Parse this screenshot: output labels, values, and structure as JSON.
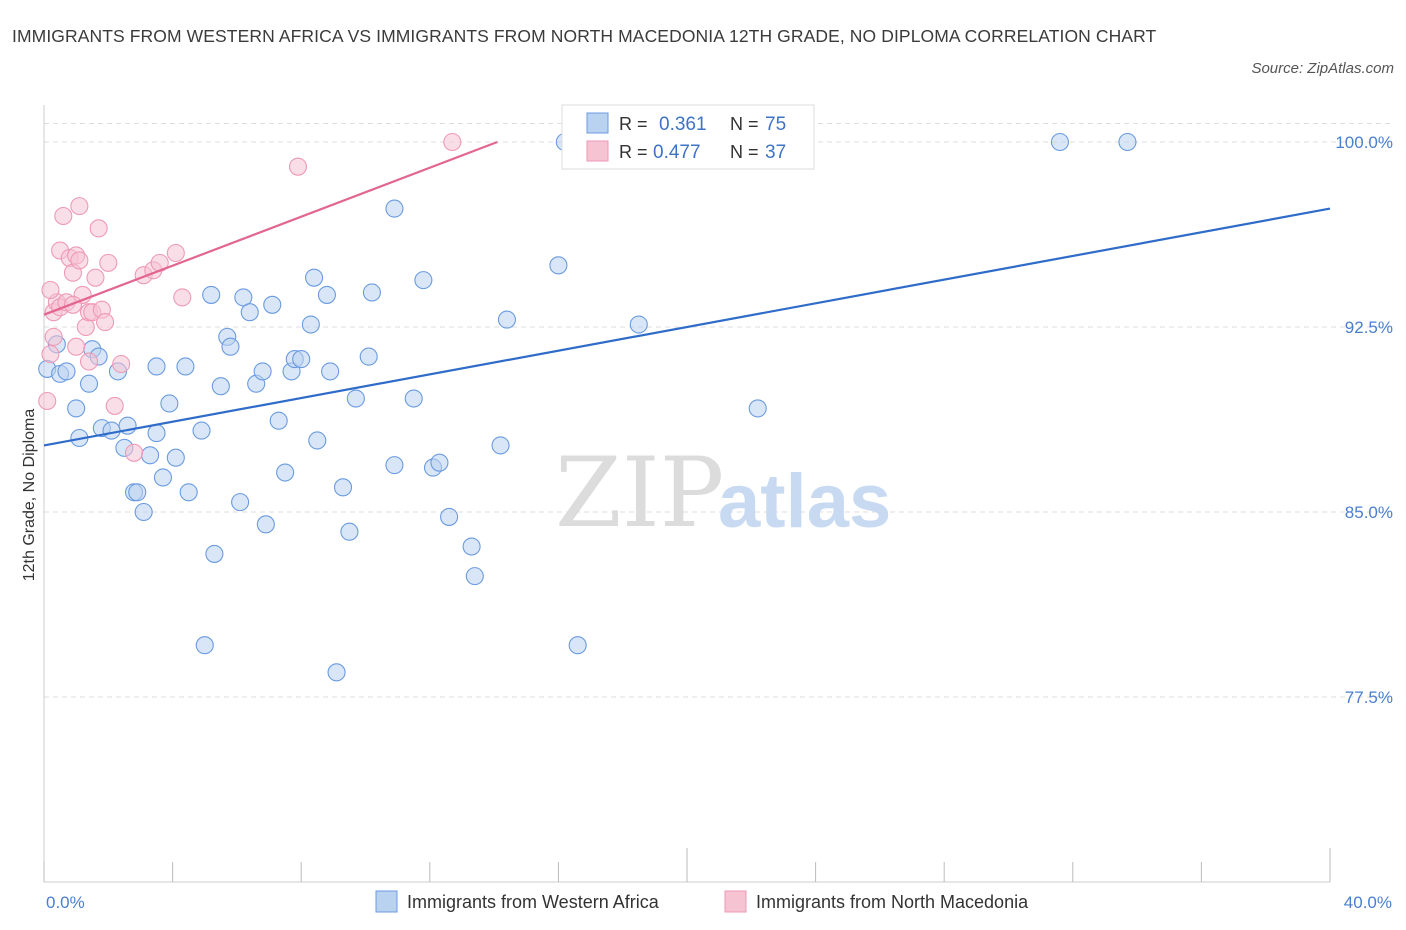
{
  "title": "IMMIGRANTS FROM WESTERN AFRICA VS IMMIGRANTS FROM NORTH MACEDONIA 12TH GRADE, NO DIPLOMA CORRELATION CHART",
  "source": "Source: ZipAtlas.com",
  "watermark": {
    "zip": "ZIP",
    "atlas": "atlas"
  },
  "colors": {
    "blue_fill": "#b9d2f0",
    "blue_stroke": "#6a9be0",
    "blue_line": "#2f6cc9",
    "pink_fill": "#f6c3d3",
    "pink_stroke": "#ee9ab5",
    "pink_line": "#e2668f",
    "tick_text": "#4a7fcf",
    "grid": "#dddddd"
  },
  "legend_box": {
    "rows": [
      {
        "r_label": "R =",
        "r_value": "0.361",
        "n_label": "N =",
        "n_value": "75",
        "series": "blue"
      },
      {
        "r_label": "R =",
        "r_value": "0.477",
        "n_label": "N =",
        "n_value": "37",
        "series": "pink"
      }
    ]
  },
  "chart_data": {
    "type": "scatter",
    "title": "IMMIGRANTS FROM WESTERN AFRICA VS IMMIGRANTS FROM NORTH MACEDONIA 12TH GRADE, NO DIPLOMA CORRELATION CHART",
    "xlabel": "",
    "ylabel": "12th Grade, No Diploma",
    "xlim": [
      0,
      40
    ],
    "ylim": [
      70.0,
      101.5
    ],
    "x_tick_labels": [
      "0.0%",
      "40.0%"
    ],
    "y_ticks": [
      77.5,
      85.0,
      92.5,
      100.0
    ],
    "y_tick_labels": [
      "77.5%",
      "85.0%",
      "92.5%",
      "100.0%"
    ],
    "grid": true,
    "legend_position": "bottom",
    "series": [
      {
        "name": "Immigrants from Western Africa",
        "color": "blue",
        "R": 0.361,
        "N": 75,
        "trendline": {
          "x": [
            0,
            40
          ],
          "y": [
            87.7,
            97.3
          ]
        },
        "points": [
          [
            0.1,
            90.8
          ],
          [
            0.4,
            91.8
          ],
          [
            0.5,
            90.6
          ],
          [
            0.7,
            90.7
          ],
          [
            1.0,
            89.2
          ],
          [
            1.1,
            88.0
          ],
          [
            1.4,
            90.2
          ],
          [
            1.5,
            91.6
          ],
          [
            1.7,
            91.3
          ],
          [
            1.8,
            88.4
          ],
          [
            2.1,
            88.3
          ],
          [
            2.3,
            90.7
          ],
          [
            2.5,
            87.6
          ],
          [
            2.6,
            88.5
          ],
          [
            2.8,
            85.8
          ],
          [
            2.9,
            85.8
          ],
          [
            3.1,
            85.0
          ],
          [
            3.3,
            87.3
          ],
          [
            3.5,
            88.2
          ],
          [
            3.7,
            86.4
          ],
          [
            3.9,
            89.4
          ],
          [
            3.5,
            90.9
          ],
          [
            4.1,
            87.2
          ],
          [
            4.4,
            90.9
          ],
          [
            4.5,
            85.8
          ],
          [
            4.9,
            88.3
          ],
          [
            5.2,
            93.8
          ],
          [
            5.3,
            83.3
          ],
          [
            5.5,
            90.1
          ],
          [
            5.7,
            92.1
          ],
          [
            5.8,
            91.7
          ],
          [
            6.1,
            85.4
          ],
          [
            6.2,
            93.7
          ],
          [
            6.4,
            93.1
          ],
          [
            6.6,
            90.2
          ],
          [
            6.8,
            90.7
          ],
          [
            6.9,
            84.5
          ],
          [
            7.1,
            93.4
          ],
          [
            7.3,
            88.7
          ],
          [
            7.5,
            86.6
          ],
          [
            7.7,
            90.7
          ],
          [
            7.8,
            91.2
          ],
          [
            8.0,
            91.2
          ],
          [
            8.3,
            92.6
          ],
          [
            8.4,
            94.5
          ],
          [
            8.5,
            87.9
          ],
          [
            8.8,
            93.8
          ],
          [
            8.9,
            90.7
          ],
          [
            9.3,
            86.0
          ],
          [
            9.5,
            84.2
          ],
          [
            9.7,
            89.6
          ],
          [
            10.1,
            91.3
          ],
          [
            10.2,
            93.9
          ],
          [
            10.9,
            97.3
          ],
          [
            10.9,
            86.9
          ],
          [
            11.5,
            89.6
          ],
          [
            11.8,
            94.4
          ],
          [
            12.1,
            86.8
          ],
          [
            12.3,
            87.0
          ],
          [
            12.6,
            84.8
          ],
          [
            13.3,
            83.6
          ],
          [
            13.4,
            82.4
          ],
          [
            14.2,
            87.7
          ],
          [
            14.4,
            92.8
          ],
          [
            16.0,
            95.0
          ],
          [
            16.6,
            79.6
          ],
          [
            16.9,
            100.0
          ],
          [
            18.5,
            92.6
          ],
          [
            22.2,
            89.2
          ],
          [
            5.0,
            79.6
          ],
          [
            9.1,
            78.5
          ],
          [
            16.2,
            100.0
          ],
          [
            31.6,
            100.0
          ],
          [
            33.7,
            100.0
          ],
          [
            17.0,
            100.0
          ]
        ]
      },
      {
        "name": "Immigrants from North Macedonia",
        "color": "pink",
        "R": 0.477,
        "N": 37,
        "trendline": {
          "x": [
            0,
            14.1
          ],
          "y": [
            93.0,
            100.0
          ]
        },
        "points": [
          [
            0.1,
            89.5
          ],
          [
            0.2,
            91.4
          ],
          [
            0.3,
            92.1
          ],
          [
            0.3,
            93.1
          ],
          [
            0.4,
            93.5
          ],
          [
            0.5,
            93.3
          ],
          [
            0.5,
            95.6
          ],
          [
            0.6,
            97.0
          ],
          [
            0.7,
            93.5
          ],
          [
            0.8,
            95.3
          ],
          [
            0.9,
            94.7
          ],
          [
            1.0,
            95.4
          ],
          [
            1.0,
            91.7
          ],
          [
            1.1,
            95.2
          ],
          [
            1.1,
            97.4
          ],
          [
            1.2,
            93.8
          ],
          [
            1.3,
            92.5
          ],
          [
            1.4,
            93.1
          ],
          [
            1.4,
            91.1
          ],
          [
            1.5,
            93.1
          ],
          [
            1.6,
            94.5
          ],
          [
            1.7,
            96.5
          ],
          [
            1.8,
            93.2
          ],
          [
            1.9,
            92.7
          ],
          [
            2.0,
            95.1
          ],
          [
            2.2,
            89.3
          ],
          [
            2.4,
            91.0
          ],
          [
            2.8,
            87.4
          ],
          [
            3.1,
            94.6
          ],
          [
            3.4,
            94.8
          ],
          [
            3.6,
            95.1
          ],
          [
            4.1,
            95.5
          ],
          [
            4.3,
            93.7
          ],
          [
            7.9,
            99.0
          ],
          [
            12.7,
            100.0
          ],
          [
            0.2,
            94.0
          ],
          [
            0.9,
            93.4
          ]
        ]
      }
    ]
  }
}
